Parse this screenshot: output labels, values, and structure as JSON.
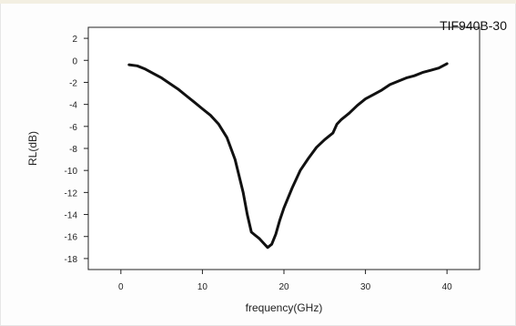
{
  "chart_data": {
    "type": "line",
    "title": "",
    "annotation": "TIF940B-30",
    "xlabel": "frequency(GHz)",
    "ylabel": "RL(dB)",
    "xlim": [
      -4,
      44
    ],
    "ylim": [
      -19,
      3
    ],
    "x_ticks": [
      0,
      10,
      20,
      30,
      40
    ],
    "y_ticks": [
      2,
      0,
      -2,
      -4,
      -6,
      -8,
      -10,
      -12,
      -14,
      -16,
      -18
    ],
    "grid": false,
    "series": [
      {
        "color": "#111111",
        "x": [
          1,
          2,
          3,
          4,
          5,
          6,
          7,
          8,
          9,
          10,
          11,
          12,
          13,
          14,
          15,
          15.5,
          16,
          16.5,
          17,
          17.5,
          18,
          18.5,
          19,
          19.5,
          20,
          21,
          22,
          23,
          24,
          25,
          26,
          26.5,
          27,
          28,
          29,
          30,
          31,
          32,
          33,
          34,
          35,
          36,
          37,
          38,
          39,
          40
        ],
        "y": [
          -0.4,
          -0.5,
          -0.8,
          -1.2,
          -1.6,
          -2.1,
          -2.6,
          -3.2,
          -3.8,
          -4.4,
          -5.0,
          -5.8,
          -7.0,
          -9.0,
          -12.0,
          -14.0,
          -15.6,
          -15.9,
          -16.2,
          -16.6,
          -17.0,
          -16.7,
          -15.8,
          -14.5,
          -13.4,
          -11.6,
          -10.0,
          -8.9,
          -7.9,
          -7.2,
          -6.6,
          -5.8,
          -5.4,
          -4.8,
          -4.1,
          -3.5,
          -3.1,
          -2.7,
          -2.2,
          -1.9,
          -1.6,
          -1.4,
          -1.1,
          -0.9,
          -0.7,
          -0.3
        ]
      }
    ]
  }
}
